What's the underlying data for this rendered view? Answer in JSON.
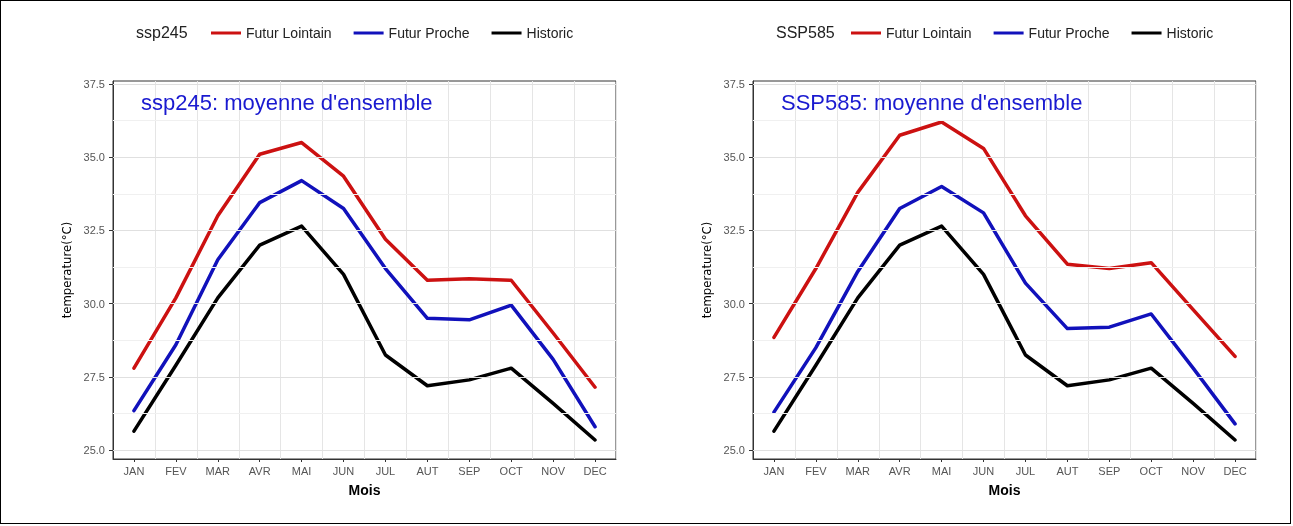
{
  "chart_data": [
    {
      "type": "line",
      "legend_title": "ssp245",
      "annotations": [
        "ssp245: moyenne d'ensemble"
      ],
      "xlabel": "Mois",
      "ylabel": "temperature(°C)",
      "categories": [
        "JAN",
        "FEV",
        "MAR",
        "AVR",
        "MAI",
        "JUN",
        "JUL",
        "AUT",
        "SEP",
        "OCT",
        "NOV",
        "DEC"
      ],
      "series": [
        {
          "name": "Futur Lointain",
          "color": "#cc1111",
          "values": [
            27.8,
            30.2,
            33.0,
            35.1,
            35.5,
            34.35,
            32.2,
            30.8,
            30.85,
            30.8,
            29.0,
            27.15
          ]
        },
        {
          "name": "Futur Proche",
          "color": "#1111bb",
          "values": [
            26.35,
            28.6,
            31.5,
            33.45,
            34.2,
            33.25,
            31.2,
            29.5,
            29.45,
            29.95,
            28.1,
            25.8
          ]
        },
        {
          "name": "Historic",
          "color": "#000000",
          "values": [
            25.65,
            27.9,
            30.2,
            32.0,
            32.65,
            31.0,
            28.25,
            27.2,
            27.4,
            27.8,
            26.6,
            25.35
          ]
        }
      ],
      "ylim": [
        24.7,
        37.6
      ],
      "yticks": [
        {
          "value": 25,
          "label": "25.0"
        },
        27.5,
        {
          "value": 30,
          "label": "30.0"
        },
        32.5,
        {
          "value": 35,
          "label": "35.0"
        },
        37.5
      ],
      "grid": true,
      "legend": "top",
      "line_style": "solid",
      "marker": "none"
    },
    {
      "type": "line",
      "legend_title": "SSP585",
      "annotations": [
        "SSP585: moyenne d'ensemble"
      ],
      "xlabel": "Mois",
      "ylabel": "temperature(°C)",
      "categories": [
        "JAN",
        "FEV",
        "MAR",
        "AVR",
        "MAI",
        "JUN",
        "JUL",
        "AUT",
        "SEP",
        "OCT",
        "NOV",
        "DEC"
      ],
      "series": [
        {
          "name": "Futur Lointain",
          "color": "#cc1111",
          "values": [
            28.85,
            31.2,
            33.8,
            35.75,
            36.2,
            35.3,
            33.0,
            31.35,
            31.2,
            31.4,
            29.8,
            28.2
          ]
        },
        {
          "name": "Futur Proche",
          "color": "#1111bb",
          "values": [
            26.3,
            28.5,
            31.1,
            33.25,
            34.0,
            33.1,
            30.7,
            29.15,
            29.2,
            29.65,
            27.8,
            25.9
          ]
        },
        {
          "name": "Historic",
          "color": "#000000",
          "values": [
            25.65,
            27.9,
            30.2,
            32.0,
            32.65,
            31.0,
            28.25,
            27.2,
            27.4,
            27.8,
            26.6,
            25.35
          ]
        }
      ],
      "ylim": [
        24.7,
        37.6
      ],
      "yticks": [
        {
          "value": 25,
          "label": "25.0"
        },
        27.5,
        {
          "value": 30,
          "label": "30.0"
        },
        32.5,
        {
          "value": 35,
          "label": "35.0"
        },
        37.5
      ],
      "grid": true,
      "legend": "top",
      "line_style": "solid",
      "marker": "none"
    }
  ]
}
